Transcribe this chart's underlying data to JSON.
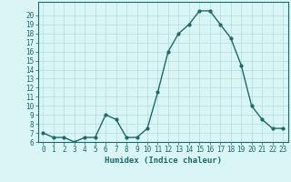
{
  "x": [
    0,
    1,
    2,
    3,
    4,
    5,
    6,
    7,
    8,
    9,
    10,
    11,
    12,
    13,
    14,
    15,
    16,
    17,
    18,
    19,
    20,
    21,
    22,
    23
  ],
  "y": [
    7.0,
    6.5,
    6.5,
    6.0,
    6.5,
    6.5,
    9.0,
    8.5,
    6.5,
    6.5,
    7.5,
    11.5,
    16.0,
    18.0,
    19.0,
    20.5,
    20.5,
    19.0,
    17.5,
    14.5,
    10.0,
    8.5,
    7.5,
    7.5
  ],
  "xlabel": "Humidex (Indice chaleur)",
  "ylabel": "",
  "xlim": [
    -0.5,
    23.5
  ],
  "ylim": [
    6,
    21
  ],
  "yticks": [
    6,
    7,
    8,
    9,
    10,
    11,
    12,
    13,
    14,
    15,
    16,
    17,
    18,
    19,
    20
  ],
  "xticks": [
    0,
    1,
    2,
    3,
    4,
    5,
    6,
    7,
    8,
    9,
    10,
    11,
    12,
    13,
    14,
    15,
    16,
    17,
    18,
    19,
    20,
    21,
    22,
    23
  ],
  "line_color": "#1a6b6b",
  "marker": "o",
  "marker_size": 2.0,
  "bg_color": "#d9f5f5",
  "grid_color": "#b0dede",
  "axis_fontsize": 5.5,
  "xlabel_fontsize": 6.5,
  "line_width": 1.0
}
